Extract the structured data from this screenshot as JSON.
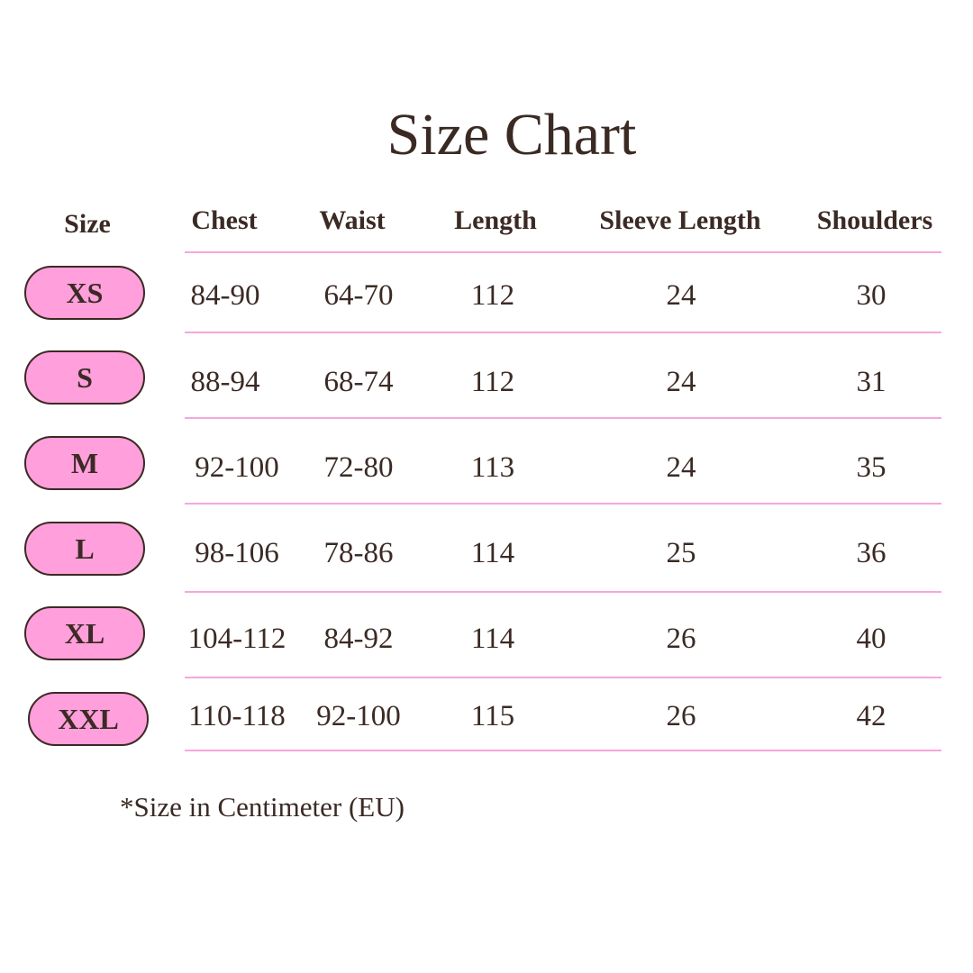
{
  "title": "Size Chart",
  "headers": [
    "Size",
    "Chest",
    "Waist",
    "Length",
    "Sleeve Length",
    "Shoulders"
  ],
  "rows": [
    {
      "size": "XS",
      "chest": "84-90",
      "waist": "64-70",
      "length": "112",
      "sleeve": "24",
      "shoulders": "30"
    },
    {
      "size": "S",
      "chest": "88-94",
      "waist": "68-74",
      "length": "112",
      "sleeve": "24",
      "shoulders": "31"
    },
    {
      "size": "M",
      "chest": "92-100",
      "waist": "72-80",
      "length": "113",
      "sleeve": "24",
      "shoulders": "35"
    },
    {
      "size": "L",
      "chest": "98-106",
      "waist": "78-86",
      "length": "114",
      "sleeve": "25",
      "shoulders": "36"
    },
    {
      "size": "XL",
      "chest": "104-112",
      "waist": "84-92",
      "length": "114",
      "sleeve": "26",
      "shoulders": "40"
    },
    {
      "size": "XXL",
      "chest": "110-118",
      "waist": "92-100",
      "length": "115",
      "sleeve": "26",
      "shoulders": "42"
    }
  ],
  "note": "*Size in Centimeter (EU)",
  "colors": {
    "pill": "#ff9fdc",
    "divider": "#f7a6dc",
    "text": "#3b2a24"
  }
}
